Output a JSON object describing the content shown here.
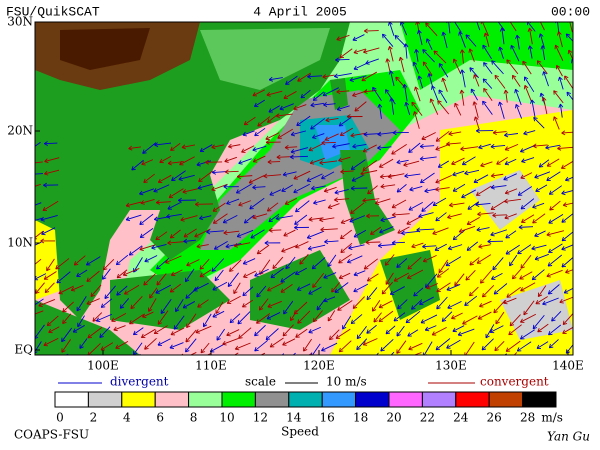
{
  "header": {
    "title": "FSU/QuikSCAT",
    "date": "4 April 2005",
    "time": "00:00"
  },
  "map": {
    "lat_labels": [
      "30N",
      "20N",
      "10N",
      "EQ"
    ],
    "lon_labels": [
      "100E",
      "110E",
      "120E",
      "130E",
      "140E"
    ]
  },
  "legend": {
    "divergent": "divergent",
    "scale": "scale",
    "scale_value": "10 m/s",
    "convergent": "convergent"
  },
  "colorbar": {
    "labels": [
      0,
      2,
      4,
      6,
      8,
      10,
      12,
      14,
      16,
      18,
      20,
      22,
      24,
      26,
      28
    ],
    "unit": "m/s",
    "title": "Speed",
    "colors": [
      "#ffffff",
      "#d0d0d0",
      "#ffff00",
      "#ffc0c8",
      "#99ff99",
      "#00ee00",
      "#909090",
      "#00b0b0",
      "#3399ff",
      "#0000cc",
      "#ff66ff",
      "#b080ff",
      "#ff0000",
      "#c04000",
      "#000000"
    ]
  },
  "footer": {
    "left": "COAPS-FSU",
    "right": "Yan Gu"
  }
}
